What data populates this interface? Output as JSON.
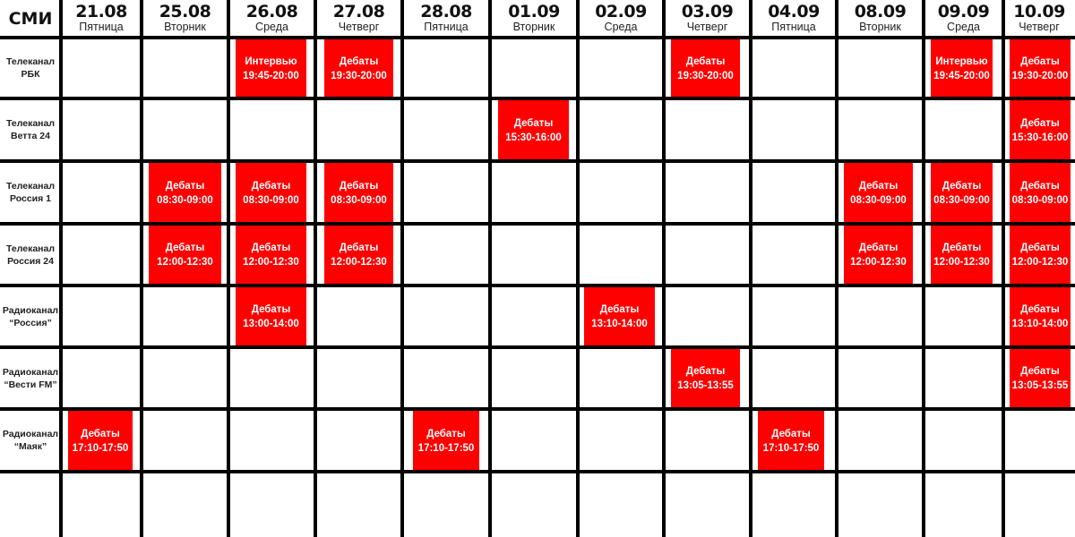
{
  "header": {
    "corner": "СМИ"
  },
  "colors": {
    "event": "#ff0000",
    "grid": "#000000"
  },
  "dates": [
    {
      "date": "21.08",
      "day": "Пятница"
    },
    {
      "date": "25.08",
      "day": "Вторник"
    },
    {
      "date": "26.08",
      "day": "Среда"
    },
    {
      "date": "27.08",
      "day": "Четверг"
    },
    {
      "date": "28.08",
      "day": "Пятница"
    },
    {
      "date": "01.09",
      "day": "Вторник"
    },
    {
      "date": "02.09",
      "day": "Среда"
    },
    {
      "date": "03.09",
      "day": "Четверг"
    },
    {
      "date": "04.09",
      "day": "Пятница"
    },
    {
      "date": "08.09",
      "day": "Вторник"
    },
    {
      "date": "09.09",
      "day": "Среда"
    },
    {
      "date": "10.09",
      "day": "Четверг"
    }
  ],
  "rows": [
    {
      "line1": "Телеканал",
      "line2": "РБК",
      "events": [
        {
          "col": 2,
          "type": "Интервью",
          "time": "19:45-20:00"
        },
        {
          "col": 3,
          "type": "Дебаты",
          "time": "19:30-20:00"
        },
        {
          "col": 7,
          "type": "Дебаты",
          "time": "19:30-20:00"
        },
        {
          "col": 10,
          "type": "Интервью",
          "time": "19:45-20:00"
        },
        {
          "col": 11,
          "type": "Дебаты",
          "time": "19:30-20:00"
        }
      ]
    },
    {
      "line1": "Телеканал",
      "line2": "Ветта 24",
      "events": [
        {
          "col": 5,
          "type": "Дебаты",
          "time": "15:30-16:00"
        },
        {
          "col": 11,
          "type": "Дебаты",
          "time": "15:30-16:00"
        }
      ]
    },
    {
      "line1": "Телеканал",
      "line2": "Россия 1",
      "events": [
        {
          "col": 1,
          "type": "Дебаты",
          "time": "08:30-09:00"
        },
        {
          "col": 2,
          "type": "Дебаты",
          "time": "08:30-09:00"
        },
        {
          "col": 3,
          "type": "Дебаты",
          "time": "08:30-09:00"
        },
        {
          "col": 9,
          "type": "Дебаты",
          "time": "08:30-09:00"
        },
        {
          "col": 10,
          "type": "Дебаты",
          "time": "08:30-09:00"
        },
        {
          "col": 11,
          "type": "Дебаты",
          "time": "08:30-09:00"
        }
      ]
    },
    {
      "line1": "Телеканал",
      "line2": "Россия 24",
      "events": [
        {
          "col": 1,
          "type": "Дебаты",
          "time": "12:00-12:30"
        },
        {
          "col": 2,
          "type": "Дебаты",
          "time": "12:00-12:30"
        },
        {
          "col": 3,
          "type": "Дебаты",
          "time": "12:00-12:30"
        },
        {
          "col": 9,
          "type": "Дебаты",
          "time": "12:00-12:30"
        },
        {
          "col": 10,
          "type": "Дебаты",
          "time": "12:00-12:30"
        },
        {
          "col": 11,
          "type": "Дебаты",
          "time": "12:00-12:30"
        }
      ]
    },
    {
      "line1": "Радиоканал",
      "line2": "“Россия”",
      "events": [
        {
          "col": 2,
          "type": "Дебаты",
          "time": "13:00-14:00"
        },
        {
          "col": 6,
          "type": "Дебаты",
          "time": "13:10-14:00"
        },
        {
          "col": 11,
          "type": "Дебаты",
          "time": "13:10-14:00"
        }
      ]
    },
    {
      "line1": "Радиоканал",
      "line2": "“Вести FM”",
      "events": [
        {
          "col": 7,
          "type": "Дебаты",
          "time": "13:05-13:55"
        },
        {
          "col": 11,
          "type": "Дебаты",
          "time": "13:05-13:55"
        }
      ]
    },
    {
      "line1": "Радиоканал",
      "line2": "“Маяк”",
      "events": [
        {
          "col": 0,
          "type": "Дебаты",
          "time": "17:10-17:50"
        },
        {
          "col": 4,
          "type": "Дебаты",
          "time": "17:10-17:50"
        },
        {
          "col": 8,
          "type": "Дебаты",
          "time": "17:10-17:50"
        }
      ]
    }
  ]
}
